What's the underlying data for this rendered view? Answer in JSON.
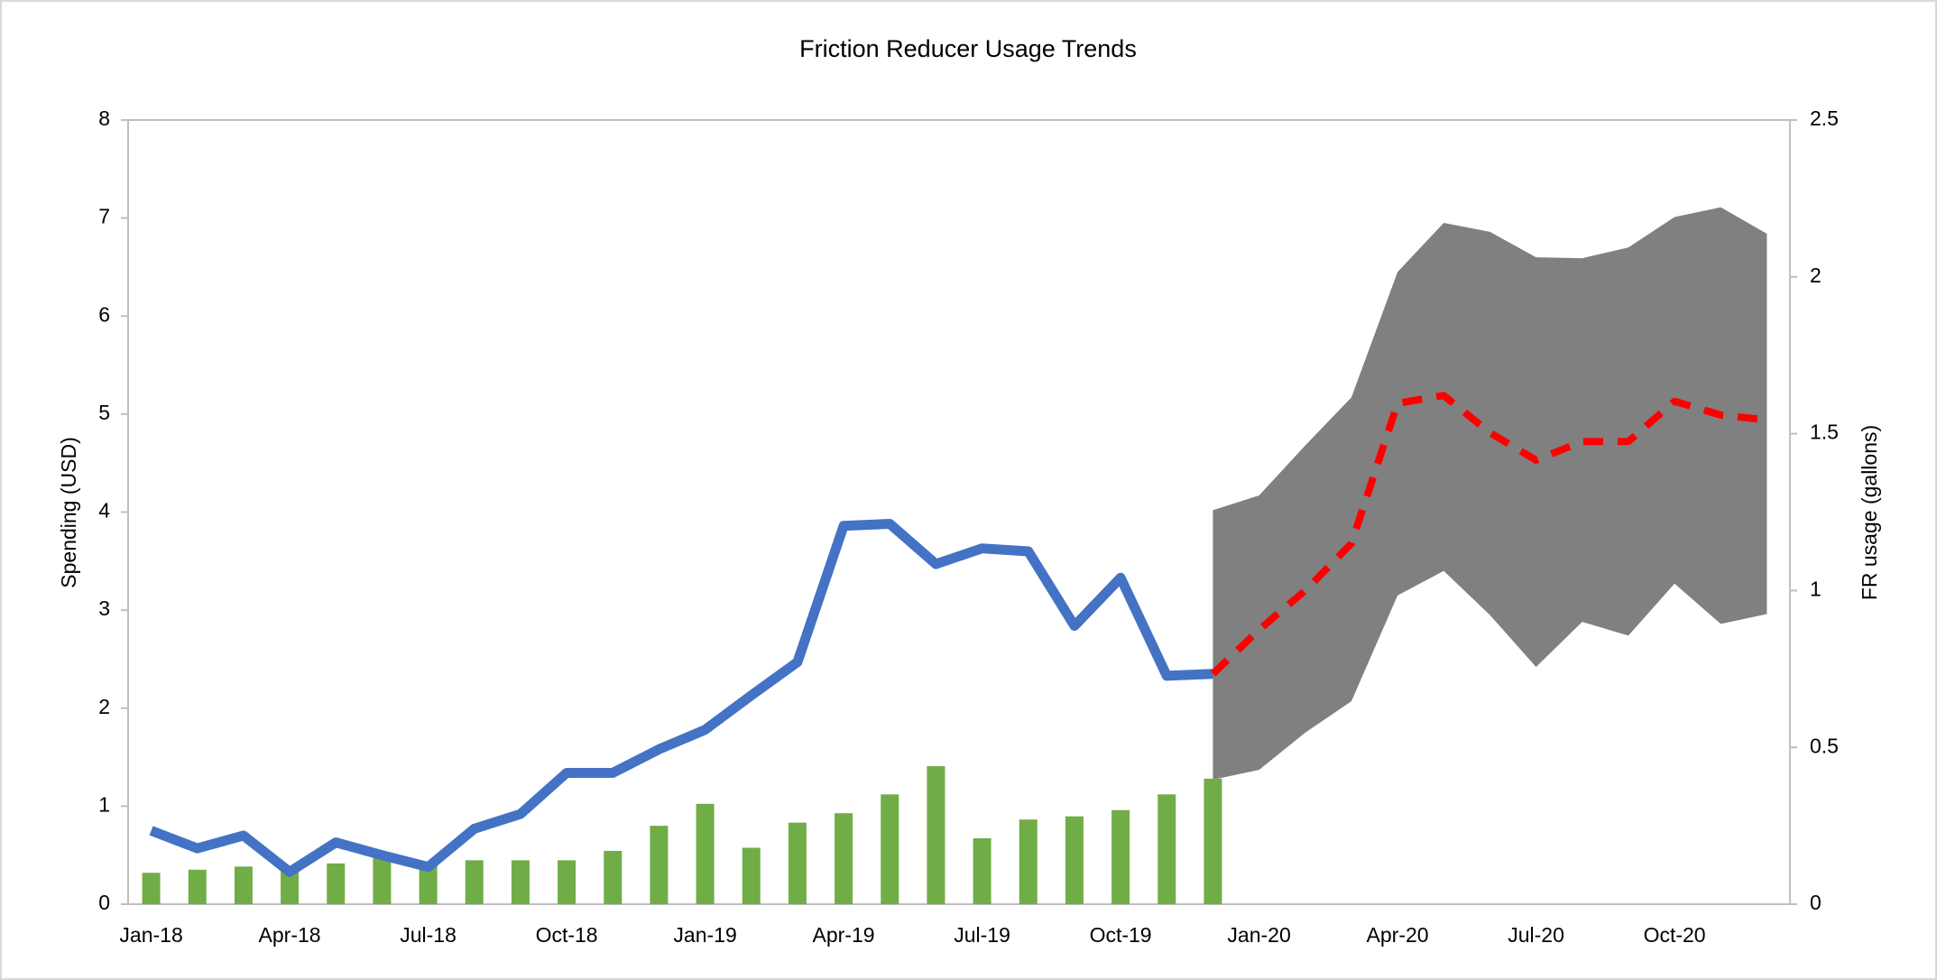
{
  "chart_data": {
    "type": "combo",
    "title": "Friction Reducer Usage Trends",
    "y_label": "Spending (USD)",
    "y2_label": "FR usage (gallons)",
    "categories": [
      "Jan-18",
      null,
      null,
      "Apr-18",
      null,
      null,
      "Jul-18",
      null,
      null,
      "Oct-18",
      null,
      null,
      "Jan-19",
      null,
      null,
      "Apr-19",
      null,
      null,
      "Jul-19",
      null,
      null,
      "Oct-19",
      null,
      null,
      "Jan-20",
      null,
      null,
      "Apr-20",
      null,
      null,
      "Jul-20",
      null,
      null,
      "Oct-20",
      null,
      null
    ],
    "ylim": [
      0,
      8
    ],
    "yticks": [
      0,
      1,
      2,
      3,
      4,
      5,
      6,
      7,
      8
    ],
    "y2lim": [
      0,
      2.5
    ],
    "y2ticks": [
      0,
      0.5,
      1,
      1.5,
      2,
      2.5
    ],
    "series": [
      {
        "type": "band",
        "color": "#808080",
        "upper": [
          null,
          null,
          null,
          null,
          null,
          null,
          null,
          null,
          null,
          null,
          null,
          null,
          null,
          null,
          null,
          null,
          null,
          null,
          null,
          null,
          null,
          null,
          null,
          4.02,
          4.17,
          4.68,
          5.17,
          6.45,
          6.95,
          6.86,
          6.6,
          6.59,
          6.7,
          7.01,
          7.11,
          6.84
        ],
        "lower": [
          null,
          null,
          null,
          null,
          null,
          null,
          null,
          null,
          null,
          null,
          null,
          null,
          null,
          null,
          null,
          null,
          null,
          null,
          null,
          null,
          null,
          null,
          null,
          1.27,
          1.37,
          1.75,
          2.07,
          3.15,
          3.4,
          2.95,
          2.42,
          2.88,
          2.74,
          3.27,
          2.86,
          2.96
        ]
      },
      {
        "type": "bar",
        "axis": "y2",
        "color": "#70ad47",
        "values": [
          0.1,
          0.11,
          0.12,
          0.12,
          0.13,
          0.15,
          0.13,
          0.14,
          0.14,
          0.14,
          0.17,
          0.25,
          0.32,
          0.18,
          0.26,
          0.29,
          0.35,
          0.44,
          0.21,
          0.27,
          0.28,
          0.3,
          0.35,
          0.4,
          null,
          null,
          null,
          null,
          null,
          null,
          null,
          null,
          null,
          null,
          null,
          null
        ]
      },
      {
        "type": "line",
        "color": "#4472c4",
        "values": [
          0.75,
          0.57,
          0.7,
          0.33,
          0.63,
          0.5,
          0.38,
          0.77,
          0.92,
          1.34,
          1.34,
          1.58,
          1.78,
          2.13,
          2.47,
          3.86,
          3.88,
          3.47,
          3.63,
          3.6,
          2.84,
          3.33,
          2.33,
          2.35,
          null,
          null,
          null,
          null,
          null,
          null,
          null,
          null,
          null,
          null,
          null,
          null
        ]
      },
      {
        "type": "dashed",
        "color": "#ff0000",
        "values": [
          null,
          null,
          null,
          null,
          null,
          null,
          null,
          null,
          null,
          null,
          null,
          null,
          null,
          null,
          null,
          null,
          null,
          null,
          null,
          null,
          null,
          null,
          null,
          2.35,
          2.8,
          3.2,
          3.68,
          5.11,
          5.19,
          4.81,
          4.53,
          4.72,
          4.72,
          5.13,
          4.99,
          4.94
        ]
      }
    ]
  }
}
